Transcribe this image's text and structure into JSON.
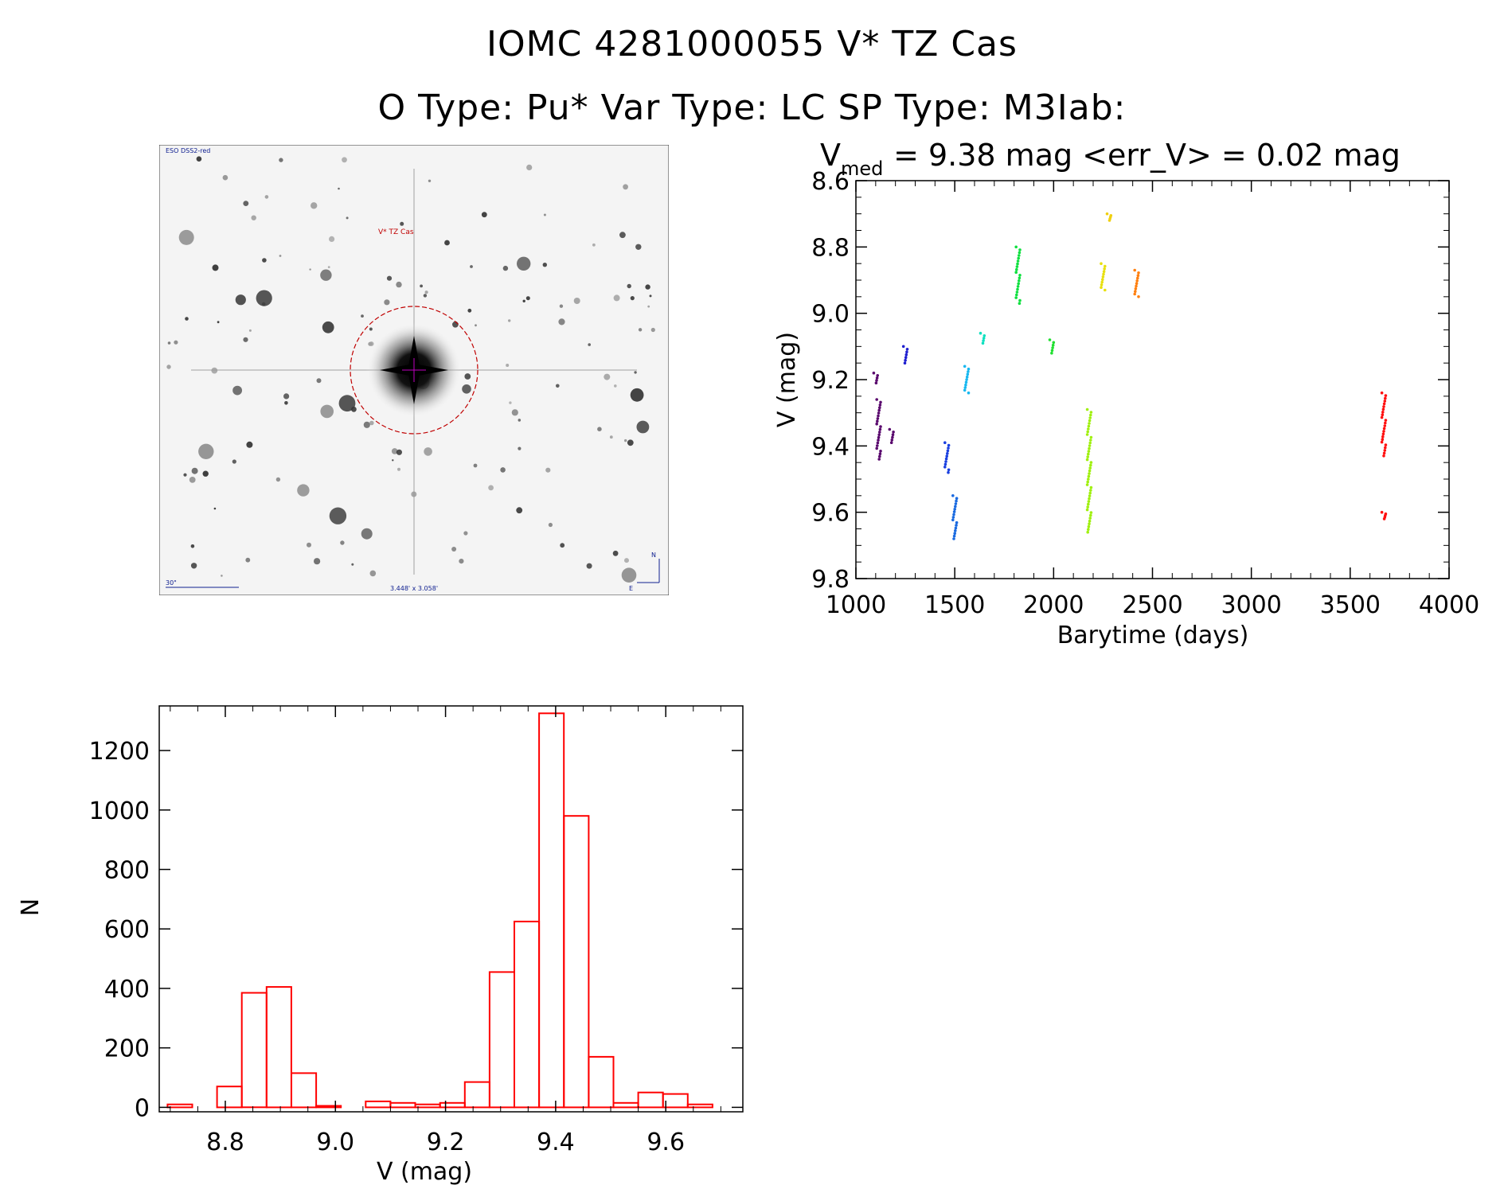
{
  "header": {
    "line1": "IOMC 4281000055   V* TZ Cas",
    "line2": "O Type: Pu*  Var Type: LC  SP Type: M3Iab:"
  },
  "finder": {
    "survey": "ESO DSS2-red",
    "target_label": "V* TZ Cas",
    "scale_label": "30\"",
    "fov_label": "3.448' x 3.058'",
    "north_label": "N",
    "east_label": "E"
  },
  "chart_data": [
    {
      "type": "scatter",
      "title": "V",
      "title_sub": "med",
      "title_rest": " = 9.38 mag <err_V> = 0.02 mag",
      "xlabel": "Barytime (days)",
      "ylabel": "V (mag)",
      "xlim": [
        1000,
        4000
      ],
      "ylim": [
        9.8,
        8.6
      ],
      "y_inverted": true,
      "xticks": [
        1000,
        1500,
        2000,
        2500,
        3000,
        3500,
        4000
      ],
      "yticks": [
        "8.6",
        "8.8",
        "9.0",
        "9.2",
        "9.4",
        "9.6",
        "9.8"
      ],
      "groups": [
        {
          "x": 1100,
          "y_min": 9.18,
          "y_max": 9.21,
          "color": "#5a0a6e"
        },
        {
          "x": 1115,
          "y_min": 9.26,
          "y_max": 9.44,
          "color": "#5a0a6e"
        },
        {
          "x": 1180,
          "y_min": 9.35,
          "y_max": 9.39,
          "color": "#5a0a6e"
        },
        {
          "x": 1250,
          "y_min": 9.1,
          "y_max": 9.15,
          "color": "#2020d0"
        },
        {
          "x": 1460,
          "y_min": 9.39,
          "y_max": 9.48,
          "color": "#1a40e0"
        },
        {
          "x": 1500,
          "y_min": 9.55,
          "y_max": 9.68,
          "color": "#1a6ae0"
        },
        {
          "x": 1560,
          "y_min": 9.16,
          "y_max": 9.24,
          "color": "#18b8f0"
        },
        {
          "x": 1640,
          "y_min": 9.06,
          "y_max": 9.09,
          "color": "#10e0c0"
        },
        {
          "x": 1820,
          "y_min": 8.8,
          "y_max": 8.97,
          "color": "#10e040"
        },
        {
          "x": 1990,
          "y_min": 9.08,
          "y_max": 9.12,
          "color": "#20e030"
        },
        {
          "x": 2180,
          "y_min": 9.29,
          "y_max": 9.66,
          "color": "#a0f010"
        },
        {
          "x": 2250,
          "y_min": 8.85,
          "y_max": 8.93,
          "color": "#e8e010"
        },
        {
          "x": 2280,
          "y_min": 8.7,
          "y_max": 8.72,
          "color": "#f0d010"
        },
        {
          "x": 2420,
          "y_min": 8.87,
          "y_max": 8.95,
          "color": "#ff8010"
        },
        {
          "x": 3670,
          "y_min": 9.24,
          "y_max": 9.43,
          "color": "#ff1010"
        },
        {
          "x": 3670,
          "y_min": 9.6,
          "y_max": 9.62,
          "color": "#ff1010"
        }
      ]
    },
    {
      "type": "bar",
      "subtype": "histogram",
      "xlabel": "V (mag)",
      "ylabel": "N",
      "xlim": [
        8.68,
        9.74
      ],
      "ylim": [
        0,
        1300
      ],
      "bin_width": 0.045,
      "xticks": [
        "8.8",
        "9.0",
        "9.2",
        "9.4",
        "9.6"
      ],
      "yticks": [
        "0",
        "200",
        "400",
        "600",
        "800",
        "1000",
        "1200"
      ],
      "bin_starts": [
        8.695,
        8.74,
        8.785,
        8.83,
        8.875,
        8.92,
        8.965,
        9.01,
        9.055,
        9.1,
        9.145,
        9.19,
        9.235,
        9.28,
        9.325,
        9.37,
        9.415,
        9.46,
        9.505,
        9.55,
        9.595,
        9.64
      ],
      "values": [
        10,
        0,
        70,
        385,
        405,
        115,
        5,
        0,
        20,
        15,
        10,
        15,
        85,
        455,
        625,
        1325,
        980,
        170,
        15,
        50,
        45,
        10
      ],
      "color": "#ff0000"
    }
  ]
}
